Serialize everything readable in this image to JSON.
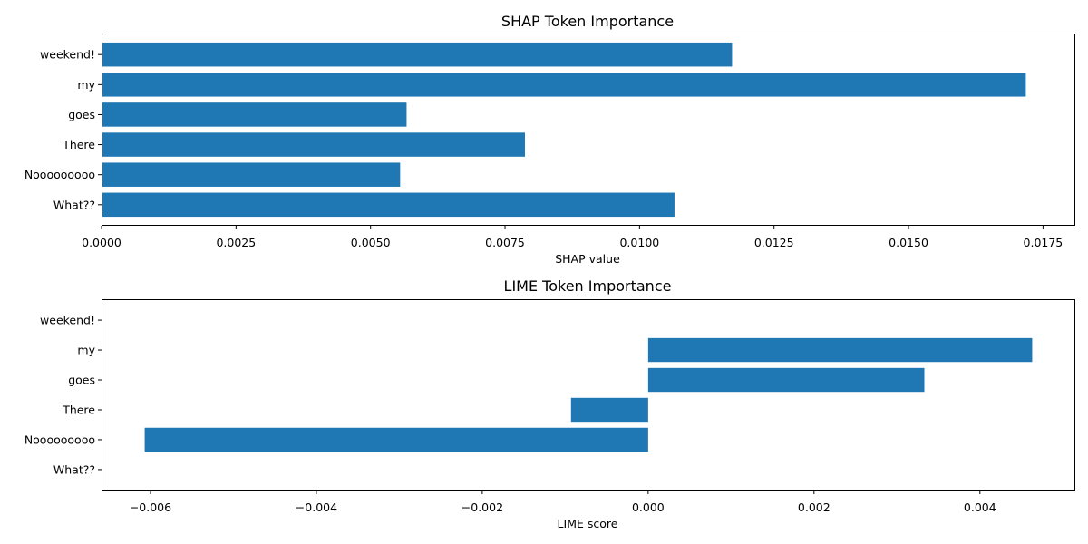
{
  "chart_data": [
    {
      "type": "bar",
      "orientation": "horizontal",
      "title": "SHAP Token Importance",
      "xlabel": "SHAP value",
      "ylabel": "",
      "categories": [
        "What??",
        "Nooooooooo",
        "There",
        "goes",
        "my",
        "weekend!"
      ],
      "values": [
        0.01065,
        0.00555,
        0.00787,
        0.00567,
        0.01718,
        0.01172
      ],
      "xlim": [
        0,
        0.0181
      ],
      "xticks": [
        0.0,
        0.0025,
        0.005,
        0.0075,
        0.01,
        0.0125,
        0.015,
        0.0175
      ],
      "xtick_labels": [
        "0.0000",
        "0.0025",
        "0.0050",
        "0.0075",
        "0.0100",
        "0.0125",
        "0.0150",
        "0.0175"
      ],
      "bar_color": "#1f77b4",
      "grid": false
    },
    {
      "type": "bar",
      "orientation": "horizontal",
      "title": "LIME Token Importance",
      "xlabel": "LIME score",
      "ylabel": "",
      "categories": [
        "What??",
        "Nooooooooo",
        "There",
        "goes",
        "my",
        "weekend!"
      ],
      "values": [
        0,
        -0.00607,
        -0.00093,
        0.00333,
        0.00463,
        0
      ],
      "xlim": [
        -0.00659,
        0.00515
      ],
      "xticks": [
        -0.006,
        -0.004,
        -0.002,
        0.0,
        0.002,
        0.004
      ],
      "xtick_labels": [
        "−0.006",
        "−0.004",
        "−0.002",
        "0.000",
        "0.002",
        "0.004"
      ],
      "bar_color": "#1f77b4",
      "grid": false
    }
  ]
}
